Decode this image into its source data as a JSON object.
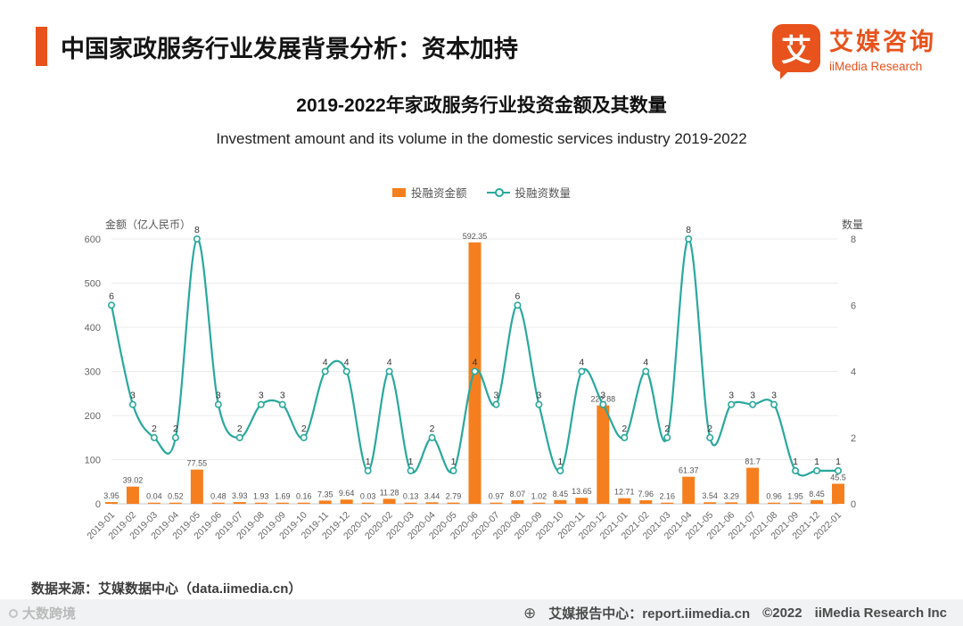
{
  "colors": {
    "accent": "#e8521c",
    "bar": "#f57f1e",
    "line": "#2aa89d"
  },
  "header": {
    "title": "中国家政服务行业发展背景分析：资本加持"
  },
  "logo": {
    "glyph": "艾",
    "name_cn": "艾媒咨询",
    "name_en": "iiMedia Research"
  },
  "chart": {
    "title_cn": "2019-2022年家政服务行业投资金额及其数量",
    "title_en": "Investment amount and its volume in the domestic services industry 2019-2022",
    "legend": [
      {
        "label": "投融资金额"
      },
      {
        "label": "投融资数量"
      }
    ],
    "left_axis_label": "金额（亿人民币）",
    "right_axis_label": "数量"
  },
  "chart_data": {
    "type": "bar+line",
    "title": "2019-2022年家政服务行业投资金额及其数量",
    "subtitle": "Investment amount and its volume in the domestic services industry 2019-2022",
    "legend_position": "top",
    "grid": true,
    "categories": [
      "2019-01",
      "2019-02",
      "2019-03",
      "2019-04",
      "2019-05",
      "2019-06",
      "2019-07",
      "2019-08",
      "2019-09",
      "2019-10",
      "2019-11",
      "2019-12",
      "2020-01",
      "2020-02",
      "2020-03",
      "2020-04",
      "2020-05",
      "2020-06",
      "2020-07",
      "2020-08",
      "2020-09",
      "2020-10",
      "2020-11",
      "2020-12",
      "2021-01",
      "2021-02",
      "2021-03",
      "2021-04",
      "2021-05",
      "2021-06",
      "2021-07",
      "2021-08",
      "2021-09",
      "2021-12",
      "2022-01"
    ],
    "series": [
      {
        "name": "投融资金额",
        "type": "bar",
        "axis": "left",
        "unit": "亿人民币",
        "values": [
          3.95,
          39.02,
          0.04,
          0.52,
          77.55,
          0.48,
          3.93,
          1.93,
          1.69,
          0.16,
          7.35,
          9.64,
          0.03,
          11.28,
          0.13,
          3.44,
          2.79,
          592.35,
          0.97,
          8.07,
          1.02,
          8.45,
          13.65,
          222.88,
          12.71,
          7.96,
          2.16,
          61.37,
          3.54,
          3.29,
          81.7,
          0.96,
          1.95,
          8.45,
          45.5
        ]
      },
      {
        "name": "投融资数量",
        "type": "line",
        "axis": "right",
        "values": [
          6,
          3,
          2,
          2,
          8,
          3,
          2,
          3,
          3,
          2,
          4,
          4,
          1,
          4,
          1,
          2,
          1,
          4,
          3,
          6,
          3,
          1,
          4,
          3,
          2,
          4,
          2,
          8,
          2,
          3,
          3,
          3,
          1,
          1,
          1
        ]
      }
    ],
    "left_axis": {
      "label": "金额（亿人民币）",
      "min": 0,
      "max": 600,
      "ticks": [
        0,
        100,
        200,
        300,
        400,
        500,
        600
      ]
    },
    "right_axis": {
      "label": "数量",
      "min": 0,
      "max": 8,
      "ticks": [
        0,
        2,
        4,
        6,
        8
      ]
    }
  },
  "source": "数据来源：艾媒数据中心（data.iimedia.cn）",
  "watermark": "大数跨境",
  "footer": {
    "icon": "⊕",
    "report": "艾媒报告中心：report.iimedia.cn",
    "copyright": "©2022",
    "company": "iiMedia Research Inc"
  }
}
